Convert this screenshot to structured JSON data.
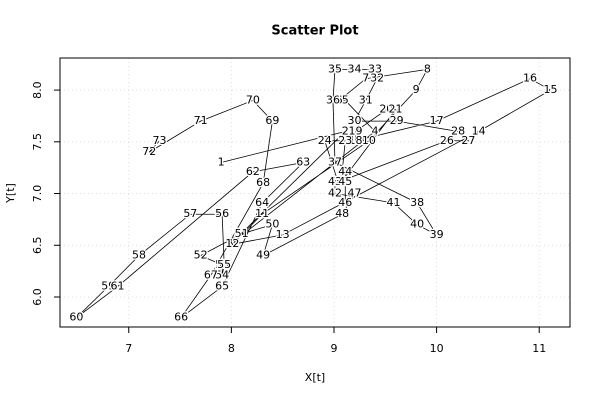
{
  "chart_data": {
    "type": "labeled-path",
    "title": "Scatter Plot",
    "xlabel": "X[t]",
    "ylabel": "Y[t]",
    "labels": [
      1,
      2,
      3,
      4,
      5,
      6,
      7,
      8,
      9,
      10,
      11,
      12,
      13,
      14,
      15,
      16,
      17,
      18,
      19,
      20,
      21,
      22,
      23,
      24,
      25,
      26,
      27,
      28,
      29,
      30,
      31,
      32,
      33,
      34,
      35,
      36,
      37,
      38,
      39,
      40,
      41,
      42,
      43,
      44,
      45,
      46,
      47,
      48,
      49,
      50,
      51,
      52,
      53,
      54,
      55,
      56,
      57,
      58,
      59,
      60,
      61,
      62,
      63,
      64,
      65,
      66,
      67,
      68,
      69,
      70,
      71,
      72,
      73
    ],
    "x": [
      7.9,
      9.11,
      7.99,
      9.4,
      9.11,
      9.05,
      9.31,
      9.91,
      9.8,
      9.34,
      8.3,
      8.01,
      8.5,
      10.41,
      11.11,
      10.91,
      10.0,
      9.21,
      9.21,
      9.51,
      9.6,
      9.07,
      9.11,
      8.91,
      9.04,
      10.1,
      10.31,
      10.21,
      9.61,
      9.2,
      9.31,
      9.42,
      9.4,
      9.2,
      9.01,
      8.99,
      9.01,
      9.81,
      10.0,
      9.81,
      9.58,
      9.01,
      9.01,
      9.11,
      9.11,
      9.11,
      9.2,
      9.08,
      8.31,
      8.4,
      8.1,
      7.7,
      7.91,
      7.91,
      7.93,
      7.91,
      7.6,
      7.1,
      6.8,
      6.49,
      6.89,
      8.21,
      8.7,
      8.3,
      7.91,
      7.51,
      7.8,
      8.31,
      8.4,
      8.21,
      7.7,
      7.2,
      7.3
    ],
    "y": [
      7.3,
      7.6,
      6.51,
      7.6,
      7.9,
      7.9,
      8.11,
      8.2,
      8.0,
      7.51,
      6.8,
      6.51,
      6.6,
      7.6,
      8.0,
      8.11,
      7.7,
      7.51,
      7.6,
      7.81,
      7.81,
      7.11,
      7.51,
      7.51,
      7.11,
      7.51,
      7.51,
      7.6,
      7.7,
      7.7,
      7.9,
      8.11,
      8.2,
      8.2,
      8.2,
      7.9,
      7.3,
      6.91,
      6.6,
      6.7,
      6.91,
      7.0,
      7.11,
      7.21,
      7.11,
      6.91,
      7.0,
      6.8,
      6.4,
      6.7,
      6.61,
      6.4,
      6.31,
      6.21,
      6.31,
      6.8,
      6.8,
      6.4,
      6.1,
      5.8,
      6.1,
      7.21,
      7.3,
      6.91,
      6.1,
      5.8,
      6.21,
      7.1,
      7.7,
      7.9,
      7.7,
      7.4,
      7.51
    ],
    "color": "#000000",
    "xlim": [
      6.33,
      11.3
    ],
    "xticks": [
      7,
      8,
      9,
      10,
      11
    ],
    "ylim": [
      5.71,
      8.31
    ],
    "yticks": [
      {
        "value": 6,
        "label": "6.0"
      },
      6.5,
      {
        "value": 7,
        "label": "7.0"
      },
      7.5,
      {
        "value": 8,
        "label": "8.0"
      }
    ],
    "grid": true
  }
}
